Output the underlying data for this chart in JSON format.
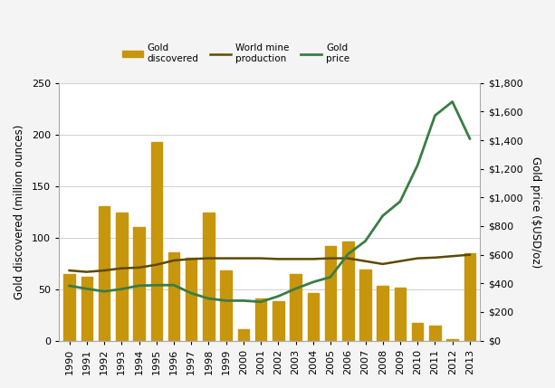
{
  "years": [
    1990,
    1991,
    1992,
    1993,
    1994,
    1995,
    1996,
    1997,
    1998,
    1999,
    2000,
    2001,
    2002,
    2003,
    2004,
    2005,
    2006,
    2007,
    2008,
    2009,
    2010,
    2011,
    2012,
    2013
  ],
  "gold_discovered": [
    65,
    62,
    130,
    124,
    110,
    193,
    86,
    80,
    124,
    68,
    11,
    41,
    38,
    65,
    46,
    92,
    96,
    69,
    53,
    51,
    17,
    15,
    1,
    85
  ],
  "world_mine_production": [
    490,
    480,
    490,
    505,
    510,
    530,
    560,
    570,
    575,
    575,
    575,
    575,
    570,
    570,
    570,
    575,
    575,
    555,
    535,
    555,
    575,
    580,
    590,
    600
  ],
  "gold_price": [
    383,
    362,
    344,
    360,
    384,
    387,
    388,
    331,
    294,
    279,
    279,
    271,
    310,
    363,
    409,
    444,
    604,
    695,
    872,
    972,
    1225,
    1572,
    1669,
    1411
  ],
  "bar_color": "#C8960C",
  "mine_production_color": "#5C4A00",
  "gold_price_color": "#3A7D44",
  "left_ylabel": "Gold discovered (million ounces)",
  "right_ylabel": "Gold price ($USD/oz)",
  "ylim_left": [
    0,
    250
  ],
  "ylim_right": [
    0,
    1800
  ],
  "yticks_left": [
    0,
    50,
    100,
    150,
    200,
    250
  ],
  "yticks_right": [
    0,
    200,
    400,
    600,
    800,
    1000,
    1200,
    1400,
    1600,
    1800
  ],
  "ytick_labels_right": [
    "$0",
    "$200",
    "$400",
    "$600",
    "$800",
    "$1,000",
    "$1,200",
    "$1,400",
    "$1,600",
    "$1,800"
  ],
  "figure_bg": "#f4f4f4",
  "plot_bg": "#ffffff",
  "grid_color": "#d0d0d0",
  "spine_color": "#aaaaaa",
  "bar_width": 0.65,
  "legend_fontsize": 7.5,
  "axis_fontsize": 8.5,
  "tick_fontsize": 8
}
